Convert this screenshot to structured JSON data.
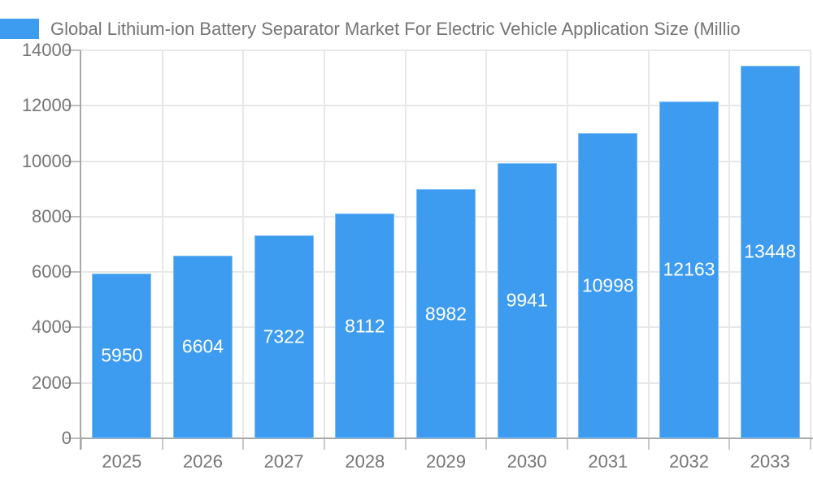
{
  "legend": {
    "swatch_color": "#3d9bf0"
  },
  "chart_data": {
    "type": "bar",
    "title": "Global Lithium-ion Battery Separator Market For Electric Vehicle Application Size (Millio",
    "categories": [
      "2025",
      "2026",
      "2027",
      "2028",
      "2029",
      "2030",
      "2031",
      "2032",
      "2033"
    ],
    "series": [
      {
        "name": "Global Lithium-ion Battery Separator Market For Electric Vehicle Application Size (Millio",
        "values": [
          5950,
          6604,
          7322,
          8112,
          8982,
          9941,
          10998,
          12163,
          13448
        ]
      }
    ],
    "bar_labels": [
      "5950",
      "6604",
      "7322",
      "8112",
      "8982",
      "9941",
      "10998",
      "12163",
      "13448"
    ],
    "xlabel": "",
    "ylabel": "",
    "ylim": [
      0,
      14000
    ],
    "ytick_step": 2000,
    "yticks": [
      0,
      2000,
      4000,
      6000,
      8000,
      10000,
      12000,
      14000
    ],
    "grid": true,
    "legend_position": "top-left",
    "colors": {
      "bar": "#3d9bf0",
      "bar_label_text": "#ffffff",
      "grid": "#e8e8e8",
      "axis": "#a9a9a9",
      "tick_label_text": "#757575"
    }
  }
}
